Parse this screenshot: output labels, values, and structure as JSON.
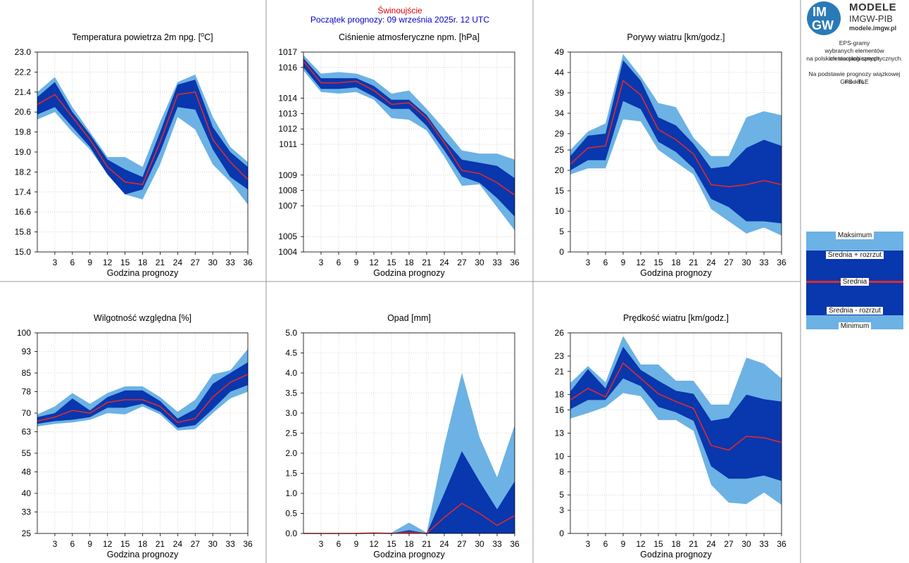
{
  "header": {
    "station": "Świnoujście",
    "forecast_start": "Początek prognozy: 09 września 2025r. 12 UTC"
  },
  "logo": {
    "mark_top": "IM",
    "mark_bottom": "GW",
    "title": "MODELE",
    "subtitle": "IMGW-PIB",
    "url": "modele.imgw.pl"
  },
  "description": {
    "line1": "EPS-gramy",
    "line2": "wybranych elementów meteorologicznych",
    "line3": "na polskich stacjach  synoptycznych.",
    "line4": "Na podstawie prognozy wiązkowej modelu",
    "line5": "GFS - TLE"
  },
  "legend": {
    "max": "Maksimum",
    "mean_plus": "Średnia + rozrzut",
    "mean": "Średnia",
    "mean_minus": "Średnia - rozrzut",
    "min": "Minimum"
  },
  "colors": {
    "outer_band": "#6cb2e4",
    "inner_band": "#0837ae",
    "mean_line": "#e02a2a",
    "grid": "#bbbbbb"
  },
  "chart_data": [
    {
      "type": "area",
      "title_html": "Temperatura powietrza 2m npg. [°C]",
      "title_prefix": "Temperatura powietrza 2m npg. [",
      "title_unit_sup": "o",
      "title_unit_rest": "C]",
      "xlabel": "Godzina prognozy",
      "x": [
        0,
        3,
        6,
        9,
        12,
        15,
        18,
        21,
        24,
        27,
        30,
        33,
        36
      ],
      "xticks": [
        3,
        6,
        9,
        12,
        15,
        18,
        21,
        24,
        27,
        30,
        33,
        36
      ],
      "yticks": [
        15.0,
        15.8,
        16.6,
        17.4,
        18.2,
        19.0,
        19.8,
        20.6,
        21.4,
        22.2,
        23.0
      ],
      "ytick_labels": [
        "15.0",
        "15.8",
        "16.6",
        "17.4",
        "18.2",
        "19.0",
        "19.8",
        "20.6",
        "21.4",
        "22.2",
        "23.0"
      ],
      "ylim": [
        15.0,
        23.0
      ],
      "series": {
        "max": [
          21.4,
          22.0,
          20.8,
          19.8,
          18.8,
          18.8,
          18.4,
          20.2,
          21.8,
          22.1,
          20.4,
          19.2,
          18.6
        ],
        "mean_plus": [
          21.2,
          21.8,
          20.6,
          19.7,
          18.7,
          18.3,
          18.0,
          19.8,
          21.7,
          21.9,
          20.0,
          19.0,
          18.4
        ],
        "mean": [
          20.9,
          21.3,
          20.4,
          19.5,
          18.4,
          17.8,
          17.7,
          19.4,
          21.3,
          21.4,
          19.5,
          18.6,
          17.9
        ],
        "mean_minus": [
          20.5,
          20.8,
          20.0,
          19.2,
          18.1,
          17.3,
          17.5,
          19.0,
          20.8,
          20.7,
          19.1,
          18.0,
          17.5
        ],
        "min": [
          20.3,
          20.6,
          19.8,
          19.1,
          18.1,
          17.3,
          17.1,
          18.5,
          20.4,
          19.9,
          18.5,
          17.8,
          16.9
        ]
      }
    },
    {
      "type": "area",
      "title": "Ciśnienie atmosferyczne npm. [hPa]",
      "xlabel": "Godzina prognozy",
      "x": [
        0,
        3,
        6,
        9,
        12,
        15,
        18,
        21,
        24,
        27,
        30,
        33,
        36
      ],
      "xticks": [
        3,
        6,
        9,
        12,
        15,
        18,
        21,
        24,
        27,
        30,
        33,
        36
      ],
      "yticks": [
        1004,
        1005,
        1007,
        1008,
        1009,
        1011,
        1012,
        1013,
        1014,
        1016,
        1017
      ],
      "ytick_labels": [
        "1004",
        "1005",
        "1007",
        "1008",
        "1009",
        "1011",
        "1012",
        "1013",
        "1014",
        "1016",
        "1017"
      ],
      "ylim": [
        1004,
        1017
      ],
      "series": {
        "max": [
          1016.8,
          1015.6,
          1015.7,
          1015.6,
          1015.2,
          1014.3,
          1014.5,
          1013.3,
          1012.0,
          1010.6,
          1010.4,
          1010.4,
          1010.0
        ],
        "mean_plus": [
          1016.6,
          1015.3,
          1015.3,
          1015.3,
          1014.8,
          1013.9,
          1013.9,
          1012.9,
          1011.3,
          1010.0,
          1009.8,
          1009.6,
          1008.8
        ],
        "mean": [
          1016.4,
          1015.0,
          1015.0,
          1015.1,
          1014.5,
          1013.6,
          1013.7,
          1012.7,
          1011.1,
          1009.3,
          1009.1,
          1008.5,
          1007.7
        ],
        "mean_minus": [
          1016.0,
          1014.6,
          1014.6,
          1014.7,
          1014.1,
          1013.3,
          1013.3,
          1012.2,
          1010.6,
          1008.9,
          1008.5,
          1007.5,
          1006.3
        ],
        "min": [
          1015.8,
          1014.4,
          1014.3,
          1014.4,
          1013.9,
          1012.7,
          1012.6,
          1011.9,
          1010.2,
          1008.3,
          1008.4,
          1006.9,
          1005.4
        ]
      }
    },
    {
      "type": "area",
      "title": "Porywy wiatru [km/godz.]",
      "xlabel": "Godzina prognozy",
      "x": [
        0,
        3,
        6,
        9,
        12,
        15,
        18,
        21,
        24,
        27,
        30,
        33,
        36
      ],
      "xticks": [
        3,
        6,
        9,
        12,
        15,
        18,
        21,
        24,
        27,
        30,
        33,
        36
      ],
      "yticks": [
        0,
        5,
        10,
        15,
        20,
        25,
        29,
        34,
        39,
        44,
        49
      ],
      "ytick_labels": [
        "0",
        "5",
        "10",
        "15",
        "20",
        "25",
        "29",
        "34",
        "39",
        "44",
        "49"
      ],
      "ylim": [
        0,
        49
      ],
      "series": {
        "max": [
          25.0,
          29.5,
          31.5,
          48.5,
          43.0,
          36.5,
          35.5,
          28.0,
          23.5,
          23.5,
          33.0,
          34.5,
          33.5
        ],
        "mean_plus": [
          23.5,
          28.5,
          29.0,
          47.0,
          42.0,
          33.0,
          31.0,
          26.5,
          20.5,
          21.0,
          25.5,
          27.5,
          26.0
        ],
        "mean": [
          21.5,
          25.5,
          26.0,
          42.0,
          38.5,
          30.0,
          27.5,
          24.0,
          16.5,
          16.0,
          16.5,
          17.5,
          16.5
        ],
        "mean_minus": [
          20.0,
          22.5,
          22.5,
          37.0,
          35.0,
          27.0,
          24.5,
          20.5,
          13.0,
          11.0,
          7.5,
          7.5,
          7.0
        ],
        "min": [
          19.0,
          20.5,
          20.5,
          32.5,
          32.0,
          25.0,
          22.0,
          19.0,
          10.5,
          7.5,
          4.5,
          6.0,
          4.0
        ]
      }
    },
    {
      "type": "area",
      "title": "Wilgotność względna [%]",
      "xlabel": "Godzina prognozy",
      "x": [
        0,
        3,
        6,
        9,
        12,
        15,
        18,
        21,
        24,
        27,
        30,
        33,
        36
      ],
      "xticks": [
        3,
        6,
        9,
        12,
        15,
        18,
        21,
        24,
        27,
        30,
        33,
        36
      ],
      "yticks": [
        25,
        33,
        40,
        48,
        55,
        63,
        70,
        78,
        85,
        93,
        100
      ],
      "ytick_labels": [
        "25",
        "33",
        "40",
        "48",
        "55",
        "63",
        "70",
        "78",
        "85",
        "93",
        "100"
      ],
      "ylim": [
        25,
        100
      ],
      "series": {
        "max": [
          69.5,
          72.5,
          77.5,
          73.5,
          77.5,
          80.0,
          80.0,
          76.0,
          70.5,
          75.0,
          84.5,
          86.0,
          94.0
        ],
        "mean_plus": [
          68.5,
          70.0,
          75.5,
          71.0,
          76.0,
          78.5,
          78.5,
          74.5,
          68.0,
          71.5,
          81.0,
          85.0,
          89.0
        ],
        "mean": [
          67.0,
          68.5,
          71.0,
          70.0,
          74.0,
          75.0,
          75.0,
          72.5,
          66.5,
          68.0,
          76.0,
          81.5,
          84.5
        ],
        "mean_minus": [
          66.0,
          67.0,
          67.5,
          68.5,
          72.0,
          72.0,
          73.5,
          70.5,
          64.5,
          65.5,
          71.5,
          78.0,
          80.5
        ],
        "min": [
          65.0,
          66.0,
          66.5,
          67.5,
          70.0,
          69.5,
          72.5,
          69.5,
          63.5,
          64.0,
          70.0,
          75.5,
          78.0
        ]
      }
    },
    {
      "type": "area",
      "title": "Opad [mm]",
      "xlabel": "Godzina prognozy",
      "x": [
        0,
        3,
        6,
        9,
        12,
        15,
        18,
        21,
        24,
        27,
        30,
        33,
        36
      ],
      "xticks": [
        3,
        6,
        9,
        12,
        15,
        18,
        21,
        24,
        27,
        30,
        33,
        36
      ],
      "yticks": [
        0.0,
        0.5,
        1.0,
        1.5,
        2.0,
        2.5,
        3.0,
        3.5,
        4.0,
        4.5,
        5.0
      ],
      "ytick_labels": [
        "0.0",
        "0.5",
        "1.0",
        "1.5",
        "2.0",
        "2.5",
        "3.0",
        "3.5",
        "4.0",
        "4.5",
        "5.0"
      ],
      "ylim": [
        0,
        5
      ],
      "series": {
        "max": [
          0,
          0,
          0,
          0,
          0.02,
          0.02,
          0.27,
          0.02,
          2.2,
          4.0,
          2.4,
          1.4,
          2.7
        ],
        "mean_plus": [
          0,
          0,
          0,
          0,
          0.02,
          0,
          0.08,
          0,
          1.0,
          2.05,
          1.3,
          0.6,
          1.3
        ],
        "mean": [
          0,
          0,
          0,
          0,
          0.01,
          0,
          0.03,
          0,
          0.4,
          0.75,
          0.5,
          0.2,
          0.45
        ],
        "mean_minus": [
          0,
          0,
          0,
          0,
          0,
          0,
          0,
          0,
          0,
          0,
          0,
          0,
          0
        ],
        "min": [
          0,
          0,
          0,
          0,
          0,
          0,
          0,
          0,
          0,
          0,
          0,
          0,
          0
        ]
      }
    },
    {
      "type": "area",
      "title": "Prędkość wiatru [km/godz.]",
      "xlabel": "Godzina prognozy",
      "x": [
        0,
        3,
        6,
        9,
        12,
        15,
        18,
        21,
        24,
        27,
        30,
        33,
        36
      ],
      "xticks": [
        3,
        6,
        9,
        12,
        15,
        18,
        21,
        24,
        27,
        30,
        33,
        36
      ],
      "yticks": [
        0,
        3,
        5,
        8,
        10,
        13,
        16,
        18,
        21,
        23,
        26
      ],
      "ytick_labels": [
        "0",
        "3",
        "5",
        "8",
        "10",
        "13",
        "16",
        "18",
        "21",
        "23",
        "26"
      ],
      "ylim": [
        0,
        26
      ],
      "series": {
        "max": [
          19.5,
          21.7,
          19.6,
          25.6,
          21.9,
          21.9,
          19.8,
          19.8,
          16.7,
          16.7,
          22.8,
          22.0,
          20.1
        ],
        "mean_plus": [
          18.4,
          21.3,
          18.8,
          24.2,
          21.2,
          19.8,
          18.5,
          18.1,
          14.6,
          15.0,
          18.0,
          17.4,
          17.1
        ],
        "mean": [
          17.3,
          18.8,
          17.7,
          22.1,
          20.1,
          18.1,
          17.1,
          16.2,
          11.4,
          10.8,
          12.6,
          12.4,
          11.8
        ],
        "mean_minus": [
          16.1,
          17.3,
          17.3,
          20.1,
          19.1,
          16.4,
          15.7,
          14.6,
          8.7,
          7.1,
          7.1,
          7.5,
          6.8
        ],
        "min": [
          14.9,
          15.6,
          16.4,
          18.2,
          17.8,
          14.7,
          14.7,
          13.3,
          6.3,
          4.0,
          3.8,
          5.3,
          3.7
        ]
      }
    }
  ]
}
